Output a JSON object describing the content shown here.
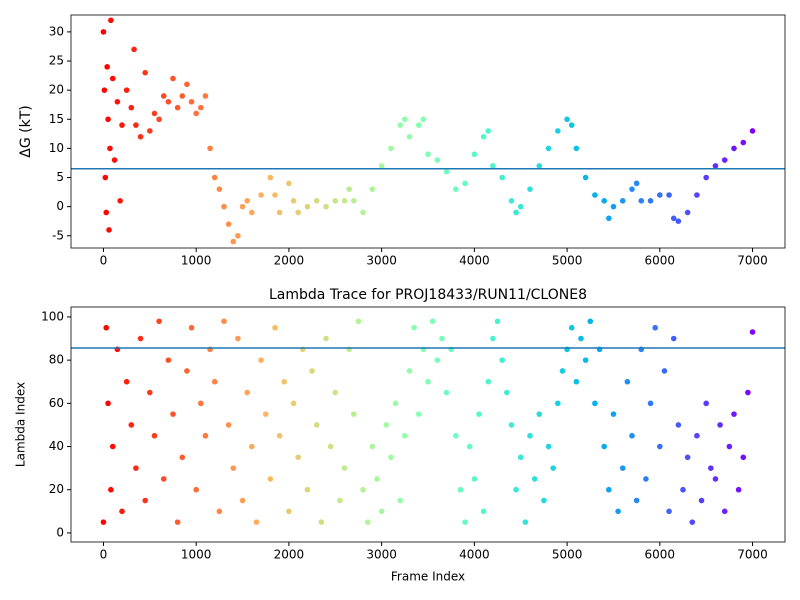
{
  "chart_data": [
    {
      "type": "scatter",
      "ylabel": "ΔG (kT)",
      "colormap": "rainbow_r",
      "x": [
        0,
        10,
        20,
        30,
        40,
        50,
        60,
        70,
        80,
        100,
        120,
        150,
        180,
        200,
        250,
        300,
        330,
        350,
        400,
        450,
        500,
        550,
        600,
        650,
        700,
        750,
        800,
        850,
        900,
        950,
        1000,
        1050,
        1100,
        1150,
        1200,
        1250,
        1300,
        1350,
        1400,
        1450,
        1500,
        1550,
        1600,
        1700,
        1800,
        1850,
        1900,
        2000,
        2050,
        2100,
        2200,
        2300,
        2400,
        2500,
        2600,
        2650,
        2700,
        2800,
        2900,
        3000,
        3100,
        3200,
        3250,
        3300,
        3400,
        3450,
        3500,
        3600,
        3700,
        3800,
        3900,
        4000,
        4100,
        4150,
        4200,
        4300,
        4400,
        4450,
        4500,
        4600,
        4700,
        4800,
        4900,
        5000,
        5050,
        5100,
        5200,
        5300,
        5400,
        5450,
        5500,
        5600,
        5700,
        5750,
        5800,
        5900,
        6000,
        6100,
        6150,
        6200,
        6300,
        6400,
        6500,
        6600,
        6700,
        6800,
        6900,
        7000
      ],
      "values": [
        30,
        20,
        5,
        -1,
        24,
        15,
        -4,
        10,
        32,
        22,
        8,
        18,
        1,
        14,
        20,
        17,
        27,
        14,
        12,
        23,
        13,
        16,
        15,
        19,
        18,
        22,
        17,
        19,
        21,
        18,
        16,
        17,
        19,
        10,
        5,
        3,
        0,
        -3,
        -6,
        -5,
        0,
        1,
        -1,
        2,
        5,
        2,
        -1,
        4,
        1,
        -1,
        0,
        1,
        0,
        1,
        1,
        3,
        1,
        -1,
        3,
        7,
        10,
        14,
        15,
        12,
        14,
        15,
        9,
        8,
        6,
        3,
        4,
        9,
        12,
        13,
        7,
        5,
        1,
        -1,
        0,
        3,
        7,
        10,
        13,
        15,
        14,
        10,
        5,
        2,
        1,
        -2,
        0,
        1,
        3,
        4,
        1,
        1,
        2,
        2,
        -2,
        -2.5,
        -1,
        2,
        5,
        7,
        8,
        10,
        11,
        13
      ],
      "hline": 6.5,
      "hline_color": "#1f77b4",
      "xlim": [
        -350,
        7350
      ],
      "ylim": [
        -7.1,
        32.9
      ],
      "xticks": [
        0,
        1000,
        2000,
        3000,
        4000,
        5000,
        6000,
        7000
      ],
      "yticks": [
        -5,
        0,
        5,
        10,
        15,
        20,
        25,
        30
      ]
    },
    {
      "type": "scatter",
      "title": "Lambda Trace for PROJ18433/RUN11/CLONE8",
      "xlabel": "Frame Index",
      "ylabel": "Lambda Index",
      "colormap": "rainbow_r",
      "x": [
        0,
        30,
        50,
        80,
        100,
        150,
        200,
        250,
        300,
        350,
        400,
        450,
        500,
        550,
        600,
        650,
        700,
        750,
        800,
        850,
        900,
        950,
        1000,
        1050,
        1100,
        1150,
        1200,
        1250,
        1300,
        1350,
        1400,
        1450,
        1500,
        1550,
        1600,
        1650,
        1700,
        1750,
        1800,
        1850,
        1900,
        1950,
        2000,
        2050,
        2100,
        2150,
        2200,
        2250,
        2300,
        2350,
        2400,
        2450,
        2500,
        2550,
        2600,
        2650,
        2700,
        2750,
        2800,
        2850,
        2900,
        2950,
        3000,
        3050,
        3100,
        3150,
        3200,
        3250,
        3300,
        3350,
        3400,
        3450,
        3500,
        3550,
        3600,
        3650,
        3700,
        3750,
        3800,
        3850,
        3900,
        3950,
        4000,
        4050,
        4100,
        4150,
        4200,
        4250,
        4300,
        4350,
        4400,
        4450,
        4500,
        4550,
        4600,
        4650,
        4700,
        4750,
        4800,
        4850,
        4900,
        4950,
        5000,
        5050,
        5100,
        5150,
        5200,
        5250,
        5300,
        5350,
        5400,
        5450,
        5500,
        5550,
        5600,
        5650,
        5700,
        5750,
        5800,
        5850,
        5900,
        5950,
        6000,
        6050,
        6100,
        6150,
        6200,
        6250,
        6300,
        6350,
        6400,
        6450,
        6500,
        6550,
        6600,
        6650,
        6700,
        6750,
        6800,
        6850,
        6900,
        6950,
        7000
      ],
      "values": [
        5,
        95,
        60,
        20,
        40,
        85,
        10,
        70,
        50,
        30,
        90,
        15,
        65,
        45,
        98,
        25,
        80,
        55,
        5,
        35,
        75,
        95,
        20,
        60,
        45,
        85,
        70,
        10,
        98,
        50,
        30,
        90,
        15,
        65,
        40,
        5,
        80,
        55,
        25,
        95,
        45,
        70,
        10,
        60,
        35,
        85,
        20,
        75,
        50,
        5,
        90,
        40,
        65,
        15,
        30,
        85,
        55,
        98,
        20,
        5,
        40,
        25,
        10,
        50,
        35,
        60,
        15,
        45,
        75,
        95,
        55,
        85,
        70,
        98,
        80,
        90,
        65,
        85,
        45,
        20,
        5,
        40,
        25,
        55,
        10,
        70,
        90,
        98,
        80,
        65,
        50,
        20,
        35,
        5,
        45,
        25,
        55,
        15,
        40,
        30,
        60,
        75,
        85,
        95,
        70,
        90,
        80,
        98,
        60,
        85,
        40,
        20,
        55,
        10,
        30,
        70,
        45,
        15,
        85,
        25,
        60,
        95,
        40,
        75,
        10,
        90,
        50,
        20,
        35,
        5,
        45,
        15,
        60,
        30,
        25,
        50,
        10,
        40,
        55,
        20,
        35,
        65,
        93
      ],
      "hline": 85.6,
      "hline_color": "#1f77b4",
      "xlim": [
        -350,
        7350
      ],
      "ylim": [
        -4.2,
        104.6
      ],
      "xticks": [
        0,
        1000,
        2000,
        3000,
        4000,
        5000,
        6000,
        7000
      ],
      "yticks": [
        0,
        20,
        40,
        60,
        80,
        100
      ]
    }
  ]
}
